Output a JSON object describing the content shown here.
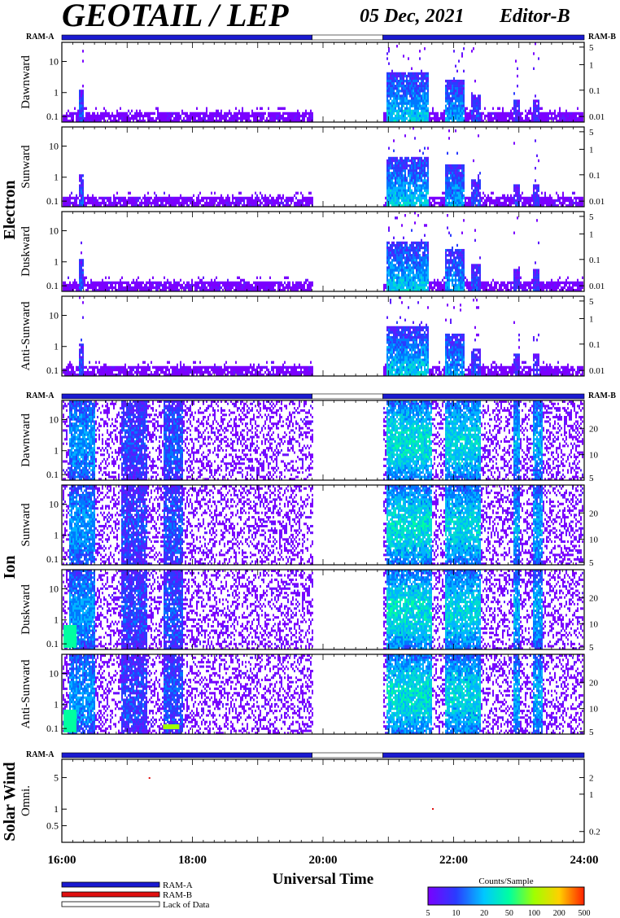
{
  "header": {
    "title": "GEOTAIL / LEP",
    "date": "05 Dec, 2021",
    "editor": "Editor-B"
  },
  "groups": {
    "electron": "Electron",
    "ion": "Ion",
    "solar_wind": "Solar Wind"
  },
  "ram_bar": {
    "left_label": "RAM-A",
    "right_label": "RAM-B",
    "segments": [
      {
        "state": "RAM-A",
        "from": "16:00",
        "to": "19:50"
      },
      {
        "state": "Lack of Data",
        "from": "19:50",
        "to": "20:55"
      },
      {
        "state": "RAM-A",
        "from": "20:55",
        "to": "24:00"
      }
    ]
  },
  "legend": {
    "items": [
      "RAM-A",
      "RAM-B",
      "Lack of Data"
    ],
    "colors": {
      "RAM-A": "#1a1ad0",
      "RAM-B": "#e01010",
      "Lack of Data": "#ffffff"
    }
  },
  "colorbar": {
    "title": "Counts/Sample",
    "ticks": [
      "5",
      "10",
      "20",
      "50",
      "100",
      "200",
      "500"
    ],
    "colors": [
      "#7a00ff",
      "#2a3cff",
      "#00c8ff",
      "#00ffa0",
      "#a0ff00",
      "#ffd000",
      "#ff2000"
    ]
  },
  "chart_data": {
    "type": "heatmap",
    "xlabel": "Universal Time",
    "x_ticks": [
      "16:00",
      "18:00",
      "20:00",
      "22:00",
      "24:00"
    ],
    "x_range": [
      "16:00",
      "24:00"
    ],
    "data_gap": [
      "19:50",
      "20:55"
    ],
    "panels": [
      {
        "group": "Electron",
        "label": "Dawnward",
        "left_ticks": [
          "10",
          "1",
          "0.1"
        ],
        "right_ticks": [
          "5",
          "1",
          "0.1",
          "0.01"
        ]
      },
      {
        "group": "Electron",
        "label": "Sunward",
        "left_ticks": [
          "10",
          "1",
          "0.1"
        ],
        "right_ticks": [
          "5",
          "1",
          "0.1",
          "0.01"
        ]
      },
      {
        "group": "Electron",
        "label": "Duskward",
        "left_ticks": [
          "10",
          "1",
          "0.1"
        ],
        "right_ticks": [
          "5",
          "1",
          "0.1",
          "0.01"
        ]
      },
      {
        "group": "Electron",
        "label": "Anti-Sunward",
        "left_ticks": [
          "10",
          "1",
          "0.1"
        ],
        "right_ticks": [
          "5",
          "1",
          "0.1",
          "0.01"
        ]
      },
      {
        "group": "Ion",
        "label": "Dawnward",
        "left_ticks": [
          "10",
          "1",
          "0.1"
        ],
        "right_ticks": [
          "20",
          "10",
          "5"
        ]
      },
      {
        "group": "Ion",
        "label": "Sunward",
        "left_ticks": [
          "10",
          "1",
          "0.1"
        ],
        "right_ticks": [
          "20",
          "10",
          "5"
        ]
      },
      {
        "group": "Ion",
        "label": "Duskward",
        "left_ticks": [
          "10",
          "1",
          "0.1"
        ],
        "right_ticks": [
          "20",
          "10",
          "5"
        ]
      },
      {
        "group": "Ion",
        "label": "Anti-Sunward",
        "left_ticks": [
          "10",
          "1",
          "0.1"
        ],
        "right_ticks": [
          "20",
          "10",
          "5"
        ]
      },
      {
        "group": "Solar Wind",
        "label": "Omni.",
        "left_ticks": [
          "5",
          "1",
          "0.5"
        ],
        "right_ticks": [
          "2",
          "1",
          "0.2"
        ]
      }
    ]
  }
}
